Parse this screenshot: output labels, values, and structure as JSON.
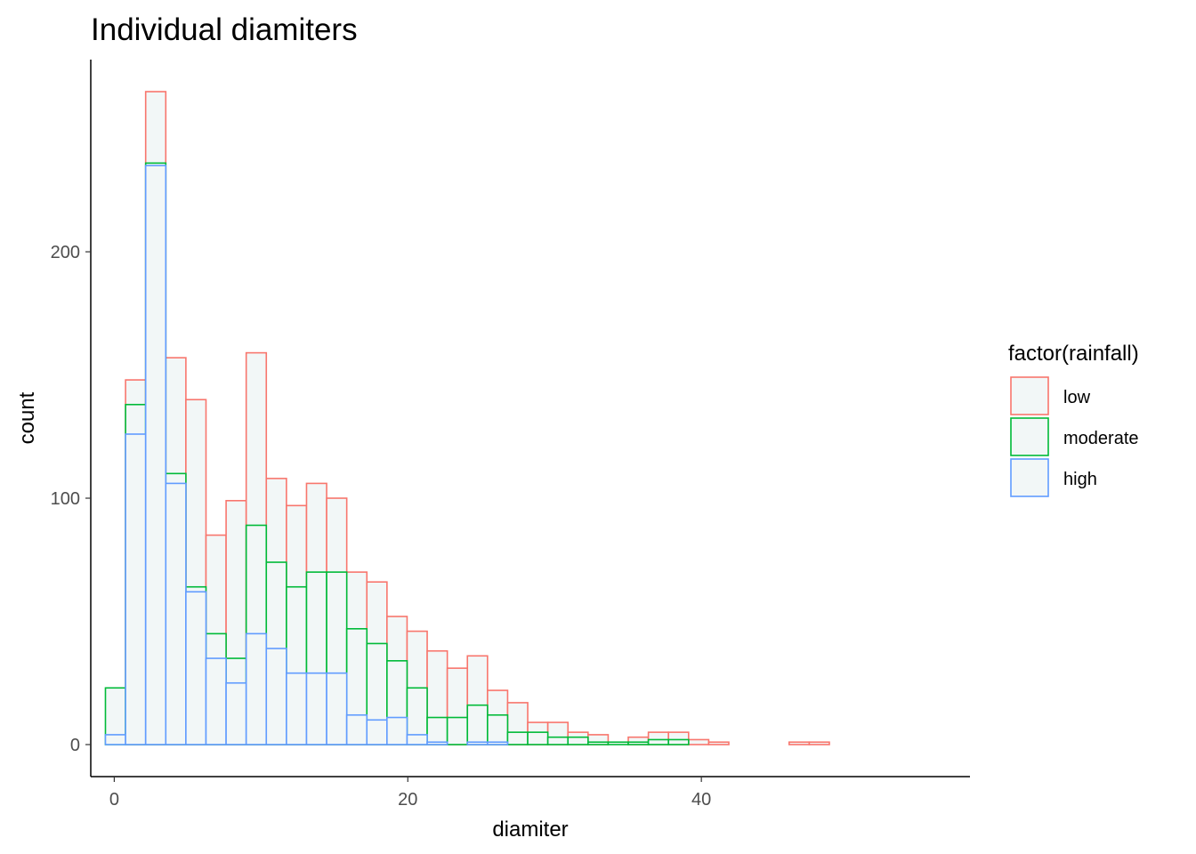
{
  "chart_data": {
    "type": "bar",
    "title": "Individual diamiters",
    "xlabel": "diamiter",
    "ylabel": "count",
    "xlim": [
      -1.6,
      58.3
    ],
    "ylim": [
      -13,
      278
    ],
    "xticks": [
      0,
      20,
      40
    ],
    "yticks": [
      0,
      100,
      200
    ],
    "grid": false,
    "stacked": true,
    "legend_title": "factor(rainfall)",
    "legend_position": "right",
    "bar_fill": "#F2F7F7",
    "bin_width": 1.37,
    "bin_start": -0.6,
    "series": [
      {
        "name": "low",
        "color": "#F8766D",
        "values": [
          0,
          10,
          29,
          47,
          76,
          40,
          64,
          70,
          34,
          33,
          36,
          30,
          23,
          25,
          18,
          23,
          27,
          20,
          20,
          10,
          12,
          4,
          6,
          2,
          3,
          0,
          2,
          3,
          3,
          2,
          1,
          0,
          0,
          0,
          1,
          1,
          0,
          0,
          0,
          0,
          0,
          0,
          0,
          0,
          0,
          0,
          0,
          0,
          0,
          0,
          0,
          0,
          0,
          0,
          0,
          0,
          0,
          0,
          0,
          1
        ]
      },
      {
        "name": "moderate",
        "color": "#00BA38",
        "values": [
          19,
          12,
          1,
          4,
          2,
          10,
          10,
          44,
          35,
          35,
          41,
          41,
          35,
          31,
          23,
          19,
          10,
          11,
          15,
          11,
          5,
          5,
          3,
          3,
          1,
          1,
          1,
          2,
          2,
          0,
          0,
          0,
          0,
          0,
          0,
          0,
          0,
          0,
          0,
          0,
          0,
          0,
          0,
          0,
          0,
          0,
          0,
          0,
          0,
          0,
          0,
          0,
          0,
          0,
          0,
          0,
          0,
          0,
          0,
          0
        ]
      },
      {
        "name": "high",
        "color": "#619CFF",
        "values": [
          4,
          126,
          235,
          106,
          62,
          35,
          25,
          45,
          39,
          29,
          29,
          29,
          12,
          10,
          11,
          4,
          1,
          0,
          1,
          1,
          0,
          0,
          0,
          0,
          0,
          0,
          0,
          0,
          0,
          0,
          0,
          0,
          0,
          0,
          0,
          0,
          0,
          0,
          0,
          0,
          0,
          0,
          0,
          0,
          0,
          0,
          0,
          0,
          0,
          0,
          0,
          0,
          0,
          0,
          0,
          0,
          0,
          0,
          0,
          0
        ]
      }
    ]
  }
}
